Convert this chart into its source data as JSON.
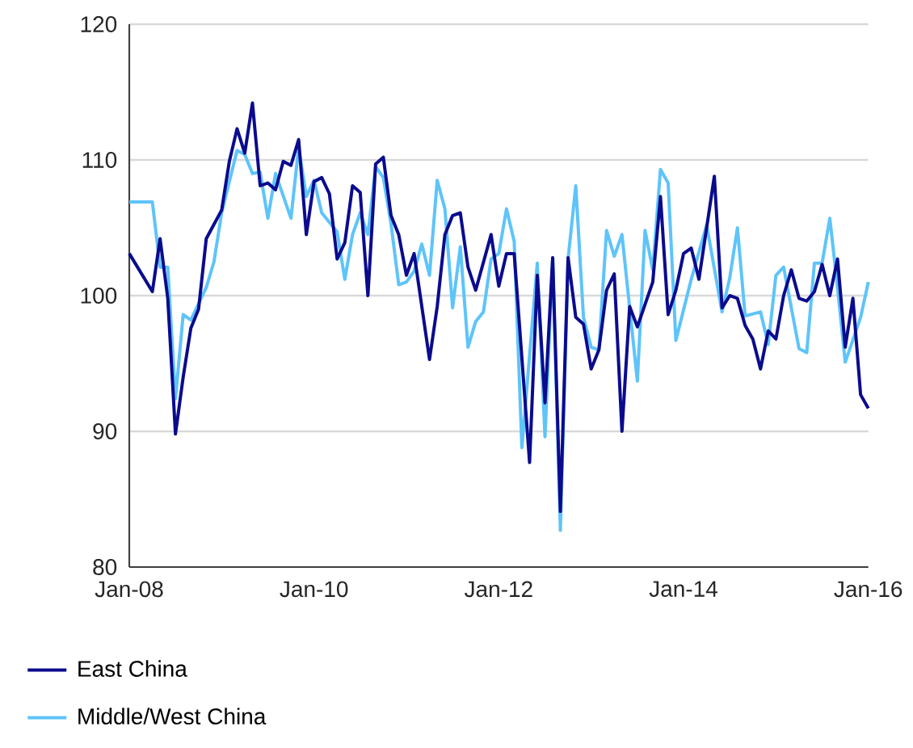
{
  "chart_data": {
    "type": "line",
    "x": [
      "2008-01",
      "2008-04",
      "2008-05",
      "2008-06",
      "2008-07",
      "2008-08",
      "2008-09",
      "2008-10",
      "2008-11",
      "2009-01",
      "2009-02",
      "2009-03",
      "2009-04",
      "2009-05",
      "2009-06",
      "2009-07",
      "2009-08",
      "2009-09",
      "2009-10",
      "2009-11",
      "2009-12",
      "2010-01",
      "2010-02",
      "2010-03",
      "2010-04",
      "2010-05",
      "2010-06",
      "2010-07",
      "2010-08",
      "2010-09",
      "2010-10",
      "2010-11",
      "2010-12",
      "2011-01",
      "2011-02",
      "2011-04",
      "2011-05",
      "2011-06",
      "2011-07",
      "2011-08",
      "2011-09",
      "2011-10",
      "2011-12",
      "2012-01",
      "2012-02",
      "2012-03",
      "2012-05",
      "2012-06",
      "2012-07",
      "2012-08",
      "2012-09",
      "2012-10",
      "2012-11",
      "2012-12",
      "2013-01",
      "2013-02",
      "2013-03",
      "2013-04",
      "2013-05",
      "2013-06",
      "2013-07",
      "2013-09",
      "2013-10",
      "2013-11",
      "2013-12",
      "2014-01",
      "2014-02",
      "2014-03",
      "2014-05",
      "2014-06",
      "2014-07",
      "2014-08",
      "2014-09",
      "2014-10",
      "2014-11",
      "2014-12",
      "2015-01",
      "2015-02",
      "2015-03",
      "2015-04",
      "2015-05",
      "2015-06",
      "2015-07",
      "2015-08",
      "2015-09",
      "2015-10",
      "2015-11",
      "2015-12",
      "2016-01"
    ],
    "series": [
      {
        "name": "East China",
        "color": "#0b0b8e",
        "values": [
          103.1,
          100.3,
          104.2,
          99.8,
          89.8,
          94.0,
          97.6,
          99.0,
          104.2,
          106.3,
          109.9,
          112.3,
          110.5,
          114.2,
          108.1,
          108.3,
          107.8,
          109.9,
          109.6,
          111.5,
          104.5,
          108.4,
          108.7,
          107.5,
          102.7,
          103.9,
          108.1,
          107.6,
          100.0,
          109.7,
          110.2,
          105.9,
          104.5,
          101.5,
          103.1,
          95.3,
          99.2,
          104.5,
          105.9,
          106.1,
          102.1,
          100.4,
          104.5,
          100.7,
          103.1,
          103.1,
          87.7,
          101.5,
          92.1,
          102.8,
          84.1,
          102.8,
          98.4,
          97.9,
          94.6,
          96.0,
          100.4,
          101.6,
          90.0,
          99.2,
          97.7,
          101.0,
          107.3,
          98.6,
          100.4,
          103.1,
          103.5,
          101.2,
          108.8,
          99.1,
          100.0,
          99.8,
          97.8,
          96.8,
          94.6,
          97.4,
          96.8,
          100.0,
          101.9,
          99.8,
          99.6,
          100.3,
          102.3,
          100.0,
          102.7,
          96.2,
          99.8,
          92.7,
          91.7
        ]
      },
      {
        "name": "Middle/West China",
        "color": "#5ec4fa",
        "x": [
          "2008-01",
          "2008-04",
          "2008-05",
          "2008-06",
          "2008-07",
          "2008-08",
          "2008-09",
          "2008-11",
          "2008-12",
          "2009-01",
          "2009-03",
          "2009-04",
          "2009-05",
          "2009-06",
          "2009-07",
          "2009-08",
          "2009-10",
          "2009-11",
          "2009-12",
          "2010-01",
          "2010-02",
          "2010-04",
          "2010-05",
          "2010-06",
          "2010-07",
          "2010-08",
          "2010-09",
          "2010-10",
          "2010-11",
          "2010-12",
          "2011-01",
          "2011-02",
          "2011-03",
          "2011-04",
          "2011-05",
          "2011-06",
          "2011-07",
          "2011-08",
          "2011-09",
          "2011-10",
          "2011-11",
          "2011-12",
          "2012-01",
          "2012-02",
          "2012-03",
          "2012-04",
          "2012-06",
          "2012-07",
          "2012-08",
          "2012-09",
          "2012-10",
          "2012-11",
          "2012-12",
          "2013-01",
          "2013-02",
          "2013-03",
          "2013-04",
          "2013-05",
          "2013-07",
          "2013-08",
          "2013-09",
          "2013-10",
          "2013-11",
          "2013-12",
          "2014-02",
          "2014-04",
          "2014-06",
          "2014-07",
          "2014-08",
          "2014-09",
          "2014-11",
          "2014-12",
          "2015-01",
          "2015-02",
          "2015-04",
          "2015-05",
          "2015-06",
          "2015-07",
          "2015-08",
          "2015-09",
          "2015-10",
          "2015-12",
          "2016-01"
        ],
        "values": [
          106.9,
          106.9,
          102.1,
          102.1,
          92.4,
          98.6,
          98.2,
          100.6,
          102.5,
          106.1,
          110.7,
          110.4,
          109.0,
          109.1,
          105.7,
          109.0,
          105.7,
          110.9,
          107.3,
          108.5,
          106.1,
          104.7,
          101.2,
          104.5,
          106.1,
          104.5,
          109.5,
          108.7,
          105.3,
          100.8,
          101.0,
          101.8,
          103.8,
          101.5,
          108.5,
          106.4,
          99.1,
          103.6,
          96.2,
          98.1,
          98.8,
          102.7,
          103.1,
          106.4,
          104.0,
          88.8,
          102.4,
          89.6,
          102.7,
          82.7,
          102.7,
          108.1,
          98.4,
          96.2,
          96.0,
          104.8,
          102.9,
          104.5,
          93.7,
          104.8,
          101.9,
          109.3,
          108.3,
          96.7,
          101.2,
          105.2,
          98.8,
          101.3,
          105.0,
          98.5,
          98.8,
          96.4,
          101.5,
          102.1,
          96.1,
          95.8,
          102.4,
          102.4,
          105.7,
          100.6,
          95.1,
          98.4,
          101.0
        ]
      }
    ],
    "xlim": [
      "2008-01",
      "2016-01"
    ],
    "xticks": [
      {
        "value": "2008-01",
        "label": "Jan-08"
      },
      {
        "value": "2010-01",
        "label": "Jan-10"
      },
      {
        "value": "2012-01",
        "label": "Jan-12"
      },
      {
        "value": "2014-01",
        "label": "Jan-14"
      },
      {
        "value": "2016-01",
        "label": "Jan-16"
      }
    ],
    "ylim": [
      80,
      120
    ],
    "yticks": [
      80,
      90,
      100,
      110,
      120
    ],
    "grid": "y",
    "legend": "bottom"
  }
}
